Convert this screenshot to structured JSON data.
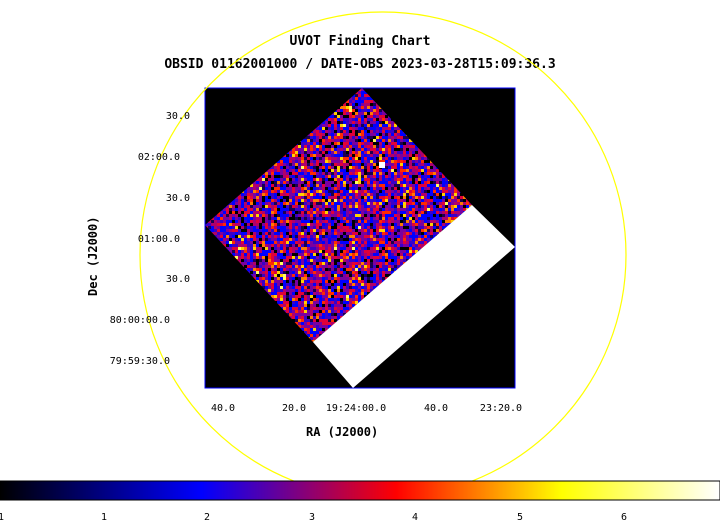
{
  "chart_data": {
    "type": "heatmap",
    "title": "UVOT Finding Chart",
    "subtitle": "OBSID 01162001000 / DATE-OBS 2023-03-28T15:09:36.3",
    "xlabel": "RA (J2000)",
    "ylabel": "Dec (J2000)",
    "x_ticks": [
      "40.0",
      "20.0",
      "19:24:00.0",
      "40.0",
      "23:20.0"
    ],
    "y_ticks": [
      "30.0",
      "02:00.0",
      "30.0",
      "01:00.0",
      "30.0",
      "80:00:00.0",
      "79:59:30.0"
    ],
    "colorbar": {
      "ticks": [
        "1",
        "1",
        "2",
        "3",
        "4",
        "5",
        "6"
      ],
      "colors": [
        "#000000",
        "#0000ff",
        "#ff0000",
        "#ffff00",
        "#ffffff"
      ]
    },
    "grid": false,
    "overlay": "circle",
    "overlay_color": "#ffff00",
    "frame_color": "#0000ff"
  }
}
